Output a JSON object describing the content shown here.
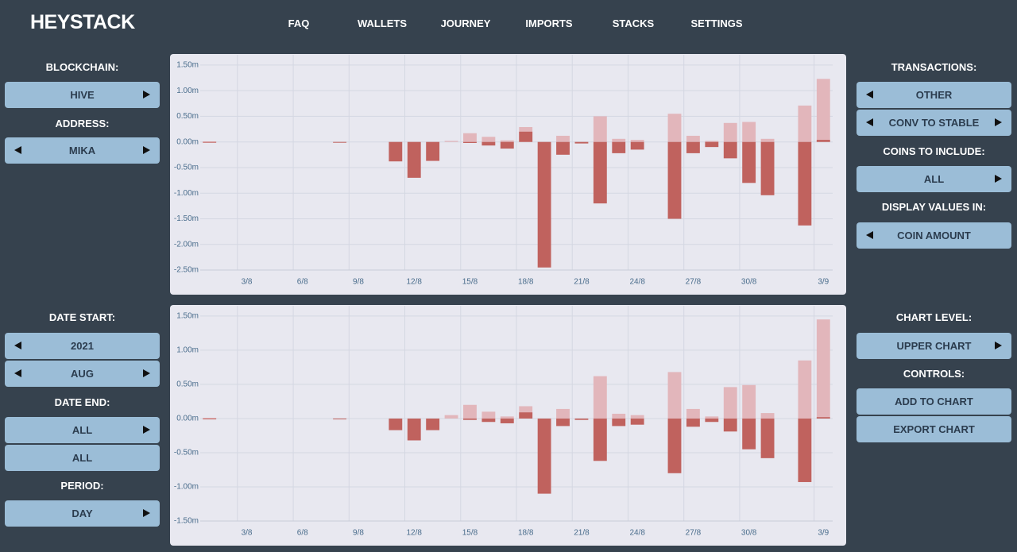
{
  "header": {
    "title": "HEYSTACK",
    "nav": [
      "FAQ",
      "WALLETS",
      "JOURNEY",
      "IMPORTS",
      "STACKS",
      "SETTINGS"
    ]
  },
  "left_panel": {
    "labels": [
      "BLOCKCHAIN:",
      "ADDRESS:",
      "DATE START:",
      "DATE END:",
      "PERIOD:"
    ],
    "buttons": [
      "HIVE",
      "MIKA",
      "2021",
      "AUG",
      "ALL",
      "ALL",
      "DAY"
    ]
  },
  "right_panel": {
    "labels": [
      "TRANSACTIONS:",
      "COINS TO INCLUDE:",
      "DISPLAY VALUES IN:",
      "CHART LEVEL:",
      "CONTROLS:"
    ],
    "buttons": [
      "OTHER",
      "CONV TO STABLE",
      "ALL",
      "COIN AMOUNT",
      "UPPER CHART",
      "ADD TO CHART",
      "EXPORT CHART"
    ]
  },
  "chart_data": [
    {
      "type": "bar",
      "grid": true,
      "categories": [
        null,
        null,
        "3/8",
        null,
        null,
        "6/8",
        null,
        null,
        "9/8",
        null,
        null,
        "12/8",
        null,
        null,
        "15/8",
        null,
        null,
        "18/8",
        null,
        null,
        "21/8",
        null,
        null,
        "24/8",
        null,
        null,
        "27/8",
        null,
        null,
        "30/8",
        null,
        null,
        null,
        "3/9"
      ],
      "ylim": [
        -2.5,
        1.7
      ],
      "yticks": [
        {
          "value": 1.5,
          "label": "1.50m"
        },
        {
          "value": 1,
          "label": "1.00m"
        },
        {
          "value": 0.5,
          "label": "0.50m"
        },
        {
          "value": 0,
          "label": "0.00m"
        },
        {
          "value": -0.5,
          "label": "-0.50m"
        },
        {
          "value": -1,
          "label": "-1.00m"
        },
        {
          "value": -1.5,
          "label": "-1.50m"
        },
        {
          "value": -2,
          "label": "-2.00m"
        },
        {
          "value": -2.5,
          "label": "-2.50m"
        }
      ],
      "series": [
        {
          "color": "#e2b6bb",
          "values": [
            0.01,
            null,
            null,
            null,
            null,
            null,
            null,
            null,
            null,
            null,
            null,
            null,
            null,
            0.02,
            0.17,
            0.1,
            0.03,
            0.29,
            null,
            0.12,
            null,
            0.5,
            0.06,
            0.04,
            null,
            0.55,
            0.12,
            0.02,
            0.37,
            0.39,
            0.06,
            null,
            0.71,
            1.23
          ]
        },
        {
          "color": "#c0625e",
          "values": [
            -0.01,
            null,
            null,
            null,
            null,
            null,
            null,
            -0.01,
            null,
            null,
            -0.38,
            -0.7,
            -0.37,
            null,
            -0.02,
            -0.07,
            -0.13,
            0.2,
            -2.45,
            -0.25,
            -0.03,
            -1.2,
            -0.22,
            -0.15,
            null,
            -1.5,
            -0.22,
            -0.1,
            -0.32,
            -0.8,
            -1.04,
            null,
            -1.63,
            0.04
          ]
        }
      ]
    },
    {
      "type": "bar",
      "grid": true,
      "categories": [
        null,
        null,
        "3/8",
        null,
        null,
        "6/8",
        null,
        null,
        "9/8",
        null,
        null,
        "12/8",
        null,
        null,
        "15/8",
        null,
        null,
        "18/8",
        null,
        null,
        "21/8",
        null,
        null,
        "24/8",
        null,
        null,
        "27/8",
        null,
        null,
        "30/8",
        null,
        null,
        null,
        "3/9"
      ],
      "ylim": [
        -1.5,
        1.65
      ],
      "yticks": [
        {
          "value": 1.5,
          "label": "1.50m"
        },
        {
          "value": 1,
          "label": "1.00m"
        },
        {
          "value": 0.5,
          "label": "0.50m"
        },
        {
          "value": 0,
          "label": "0.00m"
        },
        {
          "value": -0.5,
          "label": "-0.50m"
        },
        {
          "value": -1,
          "label": "-1.00m"
        },
        {
          "value": -1.5,
          "label": "-1.50m"
        }
      ],
      "series": [
        {
          "color": "#e2b6bb",
          "values": [
            0.01,
            null,
            null,
            null,
            null,
            null,
            null,
            null,
            null,
            null,
            null,
            null,
            null,
            0.05,
            0.2,
            0.1,
            0.03,
            0.18,
            null,
            0.14,
            null,
            0.62,
            0.07,
            0.05,
            null,
            0.68,
            0.14,
            0.03,
            0.46,
            0.49,
            0.08,
            null,
            0.85,
            1.45
          ]
        },
        {
          "color": "#c0625e",
          "values": [
            -0.01,
            null,
            null,
            null,
            null,
            null,
            null,
            -0.01,
            null,
            null,
            -0.17,
            -0.32,
            -0.17,
            null,
            -0.02,
            -0.05,
            -0.07,
            0.09,
            -1.1,
            -0.11,
            -0.02,
            -0.62,
            -0.11,
            -0.09,
            null,
            -0.8,
            -0.12,
            -0.05,
            -0.19,
            -0.45,
            -0.58,
            null,
            -0.93,
            0.02
          ]
        }
      ]
    }
  ]
}
